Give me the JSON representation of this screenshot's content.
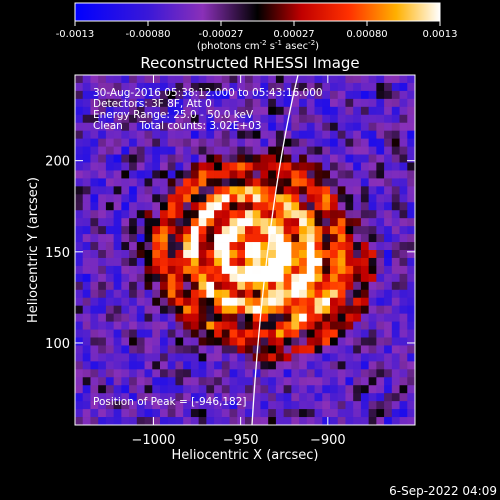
{
  "colorbar": {
    "tick_labels": [
      "-0.0013",
      "-0.00080",
      "-0.00027",
      "0.00027",
      "0.00080",
      "0.0013"
    ],
    "units_main": "(photons cm",
    "units_exp1": "-2",
    "units_mid1": " s",
    "units_exp2": "-1",
    "units_mid2": " asec",
    "units_exp3": "-2",
    "units_end": ")"
  },
  "title": "Reconstructed RHESSI Image",
  "info": {
    "line1": "30-Aug-2016 05:38:12.000 to 05:43:16.000",
    "line2": "Detectors: 3F 8F, Att 0",
    "line3": "Energy Range: 25.0 - 50.0 keV",
    "line4": "Clean     Total counts: 3.02E+03",
    "peak": "Position of Peak = [-946,182]"
  },
  "axes": {
    "xlabel": "Heliocentric X (arcsec)",
    "ylabel": "Heliocentric Y (arcsec)",
    "x_ticks": [
      -1000,
      -950,
      -900
    ],
    "x_tick_labels": [
      "−1000",
      "−950",
      "−900"
    ],
    "y_ticks": [
      100,
      150,
      200
    ],
    "y_tick_labels": [
      "100",
      "150",
      "200"
    ],
    "xlim": [
      -1045,
      -850
    ],
    "ylim": [
      55,
      247
    ]
  },
  "footer": {
    "date": "6-Sep-2022 04:09"
  },
  "colors": {
    "frame": "#ffffff",
    "limb": "#ffffff",
    "background": "#000000"
  }
}
